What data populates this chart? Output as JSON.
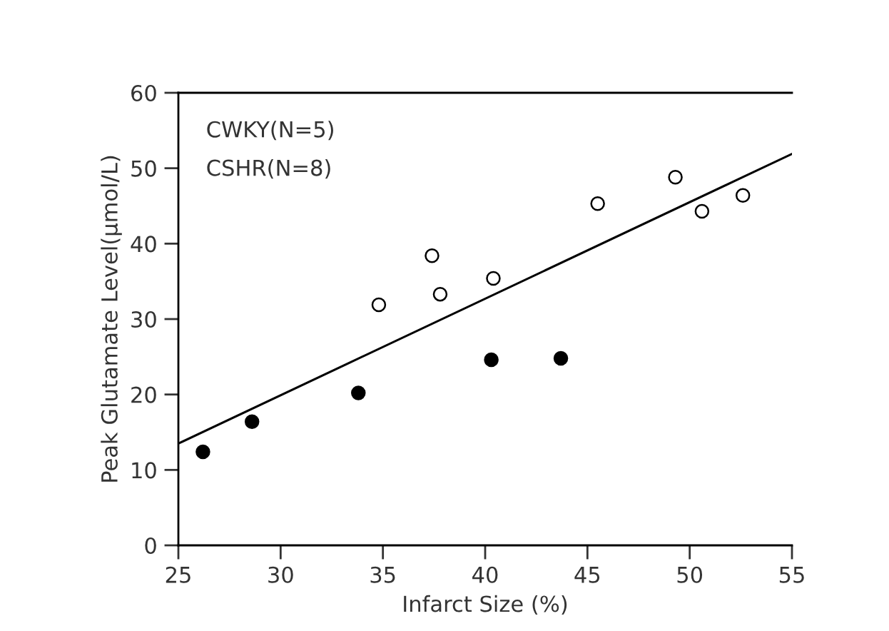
{
  "chart_data": {
    "type": "scatter",
    "xlabel": "Infarct Size (%)",
    "ylabel": "Peak Glutamate Level(μmol/L)",
    "annotations": [
      "CWKY(N=5)",
      "CSHR(N=8)"
    ],
    "xlim": [
      25,
      55
    ],
    "xticks": [
      25,
      30,
      35,
      40,
      45,
      50,
      55
    ],
    "ylim": [
      0,
      60
    ],
    "yticks": [
      0,
      10,
      20,
      30,
      40,
      50,
      60
    ],
    "grid": false,
    "marker": "circle",
    "series": [
      {
        "color": "#000000",
        "x": [
          26.2,
          28.6,
          33.8,
          40.3,
          43.7
        ],
        "values": [
          12.4,
          16.4,
          20.2,
          24.6,
          24.8
        ]
      },
      {
        "color": "#ffffff",
        "x": [
          34.8,
          37.4,
          37.8,
          40.4,
          45.5,
          49.3,
          50.6,
          52.6
        ],
        "values": [
          31.9,
          38.4,
          33.3,
          35.4,
          45.3,
          48.8,
          44.3,
          46.4
        ]
      },
      {
        "type": "line",
        "color": "#000000",
        "line_style": "solid",
        "marker": "none",
        "x": [
          25,
          55
        ],
        "values": [
          13.5,
          51.9
        ]
      }
    ]
  }
}
